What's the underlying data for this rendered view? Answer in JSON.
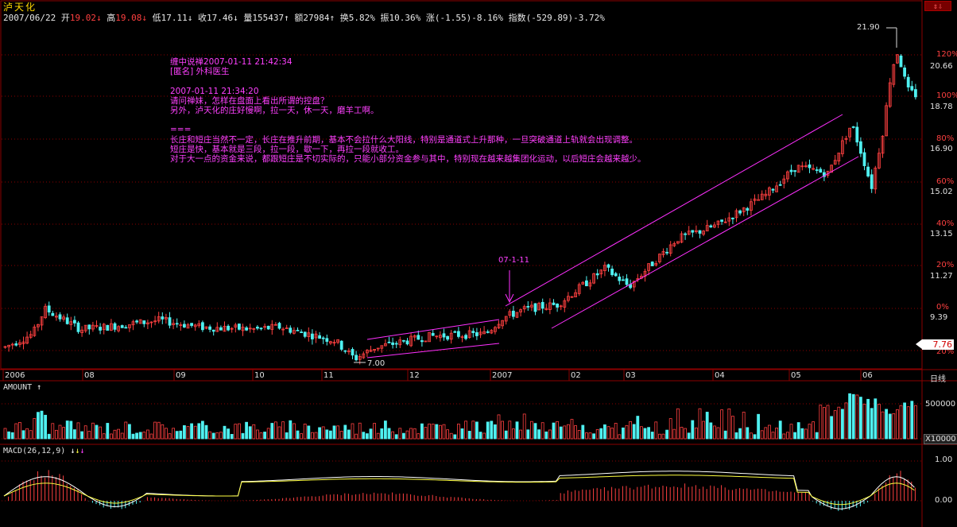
{
  "stock": {
    "name": "泸天化"
  },
  "quote": {
    "date": "2007/06/22",
    "open_label": "开",
    "open": "19.02",
    "high_label": "高",
    "high": "19.08",
    "low_label": "低",
    "low": "17.11",
    "close_label": "收",
    "close": "17.46",
    "vol_label": "量",
    "vol": "155437",
    "amt_label": "额",
    "amt": "27984",
    "turn_label": "换",
    "turn": "5.82%",
    "amp_label": "振",
    "amp": "10.36%",
    "chg_label": "涨",
    "chg": "(-1.55)-8.16%",
    "idx_label": "指数",
    "idx": "(-529.89)-3.72%"
  },
  "note": {
    "lines": [
      "缠中说禅2007-01-11 21:42:34",
      "[匿名] 外科医生",
      "",
      "2007-01-11 21:34:20",
      "请问禅妹，怎样在盘面上看出所谓的控盘？",
      "另外，泸天化的庄好慢啊，拉一天，休一天，磨羊工啊。",
      "",
      "===",
      "长庄和短庄当然不一定，长庄在推升前期，基本不会拉什么大阳线，特别是通道式上升那种，一旦突破通道上轨就会出现调整。",
      "短庄是快，基本就是三段，拉一段，歇一下，再拉一段就收工。",
      "对于大一点的资金来说，都跟短庄是不切实际的，只能小部分资金参与其中，特别现在越来越集团化运动，以后短庄会越来越少。"
    ]
  },
  "annotations": {
    "arrow_label": "07-1-11",
    "peak_label": "21.90",
    "low_label": "7.00"
  },
  "right_axis": {
    "pct": [
      "120%",
      "100%",
      "80%",
      "60%",
      "40%",
      "20%",
      "0%",
      "20%"
    ],
    "price": [
      "20.66",
      "18.78",
      "16.90",
      "15.02",
      "13.15",
      "11.27",
      "9.39"
    ],
    "current_price": "7.76"
  },
  "x_axis": {
    "labels": [
      "2006",
      "08",
      "09",
      "10",
      "11",
      "12",
      "2007",
      "02",
      "03",
      "04",
      "05",
      "06"
    ],
    "period": "日线"
  },
  "volume_panel": {
    "title": "AMOUNT",
    "arrow": "↑",
    "scale_label": "500000",
    "unit": "X10000"
  },
  "macd_panel": {
    "title": "MACD(26,12,9)",
    "arrows": [
      "↓",
      "↓",
      "↓"
    ],
    "scale_top": "1.00",
    "scale_zero": "0.00"
  },
  "colors": {
    "up": "#ff4040",
    "down": "#4ff0f0",
    "channel": "#ff30ff",
    "grid": "#8b0000",
    "ma": "#ffff40"
  }
}
